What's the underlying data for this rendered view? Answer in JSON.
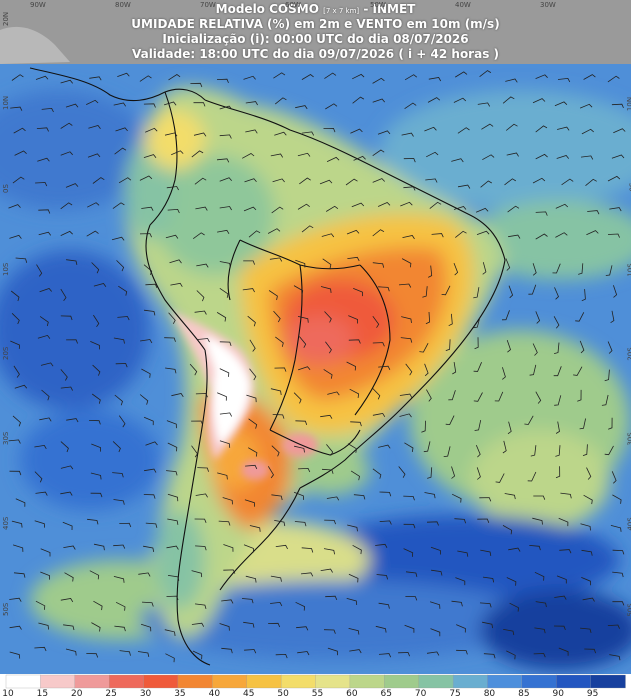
{
  "header": {
    "line1_prefix": "Modelo COSMO",
    "line1_small": "[7 x 7 km]",
    "line1_suffix": "- INMET",
    "line2": "UMIDADE RELATIVA (%) em 2m e VENTO em 10m (m/s)",
    "line3": "Inicialização (i): 00:00 UTC do dia 08/07/2026",
    "line4": "Validade: 18:00 UTC do dia 09/07/2026 ( i + 42 horas )"
  },
  "axis": {
    "lon_labels": [
      "90W",
      "80W",
      "70W",
      "60W",
      "50W",
      "40W",
      "30W"
    ],
    "lat_labels": [
      "20N",
      "10N",
      "0S",
      "10S",
      "20S",
      "30S",
      "40S",
      "50S"
    ]
  },
  "legend": {
    "labels": [
      "10",
      "15",
      "20",
      "25",
      "30",
      "35",
      "40",
      "45",
      "50",
      "55",
      "60",
      "65",
      "70",
      "75",
      "80",
      "85",
      "90",
      "95"
    ],
    "colors": [
      "#ffffff",
      "#f7c9c9",
      "#ef9a9a",
      "#ee6a5c",
      "#ef5a3a",
      "#f28632",
      "#f7a73a",
      "#f6c243",
      "#f3dd6a",
      "#e5e38a",
      "#bcd68a",
      "#9fcb8c",
      "#86c3a4",
      "#6aaed0",
      "#4d8fdc",
      "#3572d2",
      "#2356c0",
      "#17409e"
    ]
  }
}
